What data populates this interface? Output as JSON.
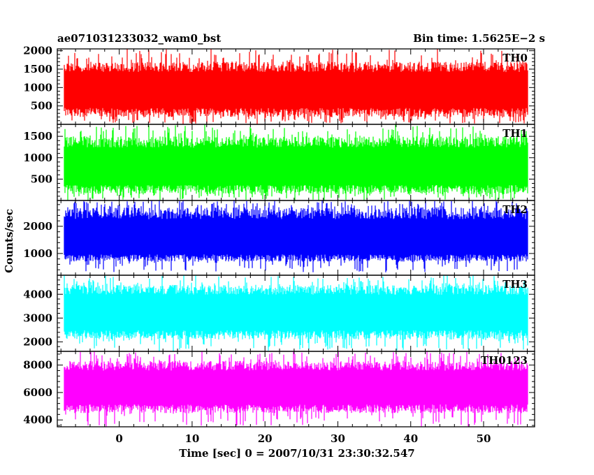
{
  "chart_data": {
    "type": "line",
    "title_left": "ae071031233032_wam0_bst",
    "title_right": "Bin time: 1.5625E−2 s",
    "xlabel": "Time [sec] 0 = 2007/10/31 23:30:32.547",
    "ylabel": "Counts/sec",
    "xlim": [
      -8.5,
      57
    ],
    "x_data_range": [
      -7.5,
      56
    ],
    "bin_time": 0.015625,
    "x_ticks": [
      0,
      10,
      20,
      30,
      40,
      50
    ],
    "grid": false,
    "panels": [
      {
        "name": "TH0",
        "color": "#ff0000",
        "ylim": [
          0,
          2050
        ],
        "y_ticks": [
          500,
          1000,
          1500,
          2000
        ],
        "typical_range": [
          200,
          1700
        ],
        "spike_range": [
          0,
          2050
        ],
        "mean": 900
      },
      {
        "name": "TH1",
        "color": "#00ff00",
        "ylim": [
          0,
          1780
        ],
        "y_ticks": [
          500,
          1000,
          1500
        ],
        "typical_range": [
          150,
          1500
        ],
        "spike_range": [
          0,
          1780
        ],
        "mean": 750
      },
      {
        "name": "TH2",
        "color": "#0000ff",
        "ylim": [
          200,
          2950
        ],
        "y_ticks": [
          1000,
          2000
        ],
        "typical_range": [
          700,
          2700
        ],
        "spike_range": [
          300,
          2950
        ],
        "mean": 1450
      },
      {
        "name": "TH3",
        "color": "#00ffff",
        "ylim": [
          1600,
          4800
        ],
        "y_ticks": [
          2000,
          3000,
          4000
        ],
        "typical_range": [
          2100,
          4400
        ],
        "spike_range": [
          1600,
          4800
        ],
        "mean": 3200
      },
      {
        "name": "TH0123",
        "color": "#ff00ff",
        "ylim": [
          3500,
          9000
        ],
        "y_ticks": [
          4000,
          6000,
          8000
        ],
        "typical_range": [
          4500,
          8300
        ],
        "spike_range": [
          3500,
          9000
        ],
        "mean": 6300
      }
    ]
  }
}
